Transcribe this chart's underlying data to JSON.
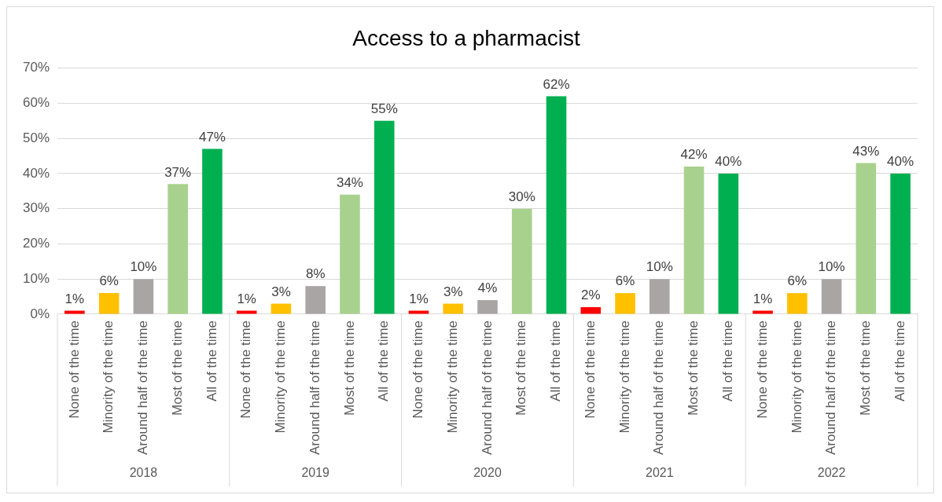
{
  "chart_data": {
    "type": "bar",
    "title": "Access to a pharmacist",
    "categories": [
      "None of the time",
      "Minority of the time",
      "Around half of the time",
      "Most of the time",
      "All of the time",
      "None of the time",
      "Minority of the time",
      "Around half of the time",
      "Most of the time",
      "All of the time",
      "None of the time",
      "Minority of the time",
      "Around half of the time",
      "Most of the time",
      "All of the time",
      "None of the time",
      "Minority of the time",
      "Around half of the time",
      "Most of the time",
      "All of the time",
      "None of the time",
      "Minority of the time",
      "Around half of the time",
      "Most of the time",
      "All of the time"
    ],
    "values": [
      1,
      6,
      10,
      37,
      47,
      1,
      3,
      8,
      34,
      55,
      1,
      3,
      4,
      30,
      62,
      2,
      6,
      10,
      42,
      40,
      1,
      6,
      10,
      43,
      40
    ],
    "value_labels": [
      "1%",
      "6%",
      "10%",
      "37%",
      "47%",
      "1%",
      "3%",
      "8%",
      "34%",
      "55%",
      "1%",
      "3%",
      "4%",
      "30%",
      "62%",
      "2%",
      "6%",
      "10%",
      "42%",
      "40%",
      "1%",
      "6%",
      "10%",
      "43%",
      "40%"
    ],
    "colors": [
      "#ff0000",
      "#ffc000",
      "#aaa5a5",
      "#a9d18e",
      "#00b050",
      "#ff0000",
      "#ffc000",
      "#aaa5a5",
      "#a9d18e",
      "#00b050",
      "#ff0000",
      "#ffc000",
      "#aaa5a5",
      "#a9d18e",
      "#00b050",
      "#ff0000",
      "#ffc000",
      "#aaa5a5",
      "#a9d18e",
      "#00b050",
      "#ff0000",
      "#ffc000",
      "#aaa5a5",
      "#a9d18e",
      "#00b050"
    ],
    "ylim": [
      0,
      70
    ],
    "yticks": [
      {
        "value": 0,
        "label": "0%"
      },
      {
        "value": 10,
        "label": "10%"
      },
      {
        "value": 20,
        "label": "20%"
      },
      {
        "value": 30,
        "label": "30%"
      },
      {
        "value": 40,
        "label": "40%"
      },
      {
        "value": 50,
        "label": "50%"
      },
      {
        "value": 60,
        "label": "60%"
      },
      {
        "value": 70,
        "label": "70%"
      }
    ],
    "grid": "y",
    "annotations": [
      "2018",
      "2019",
      "2020",
      "2021",
      "2022"
    ]
  }
}
